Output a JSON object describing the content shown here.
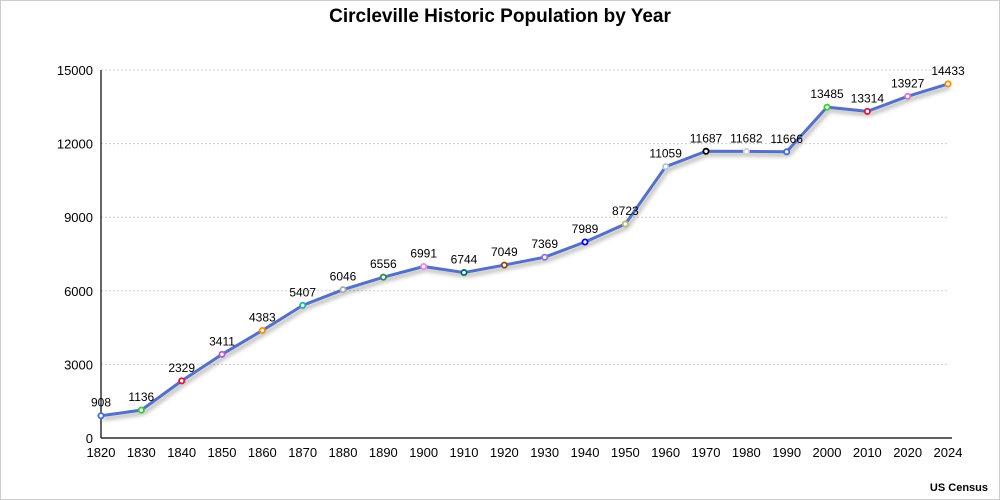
{
  "chart_data": {
    "type": "line",
    "title": "Circleville Historic Population by Year",
    "source": "US Census",
    "xlabel": "",
    "ylabel": "",
    "categories": [
      "1820",
      "1830",
      "1840",
      "1850",
      "1860",
      "1870",
      "1880",
      "1890",
      "1900",
      "1910",
      "1920",
      "1930",
      "1940",
      "1950",
      "1960",
      "1970",
      "1980",
      "1990",
      "2000",
      "2010",
      "2020",
      "2024"
    ],
    "series": [
      {
        "name": "Population",
        "color": "#5470c6",
        "values": [
          908,
          1136,
          2329,
          3411,
          4383,
          5407,
          6046,
          6556,
          6991,
          6744,
          7049,
          7369,
          7989,
          8723,
          11059,
          11687,
          11682,
          11666,
          13485,
          13314,
          13927,
          14433
        ]
      }
    ],
    "marker_colors": [
      "#4169e1",
      "#32cd32",
      "#dc143c",
      "#ba55d3",
      "#ff8c00",
      "#20b2aa",
      "#a9a9a9",
      "#2e8b57",
      "#ee82ee",
      "#006d6d",
      "#8b4513",
      "#9370db",
      "#0000ff",
      "#bdb76b",
      "#b0c4de",
      "#000000",
      "#d3d3d3",
      "#4169e1",
      "#32cd32",
      "#dc143c",
      "#da70d6",
      "#ff8c00"
    ],
    "ylim": [
      0,
      15000
    ],
    "yticks": [
      0,
      3000,
      6000,
      9000,
      12000,
      15000
    ],
    "grid": true,
    "data_labels": true
  }
}
